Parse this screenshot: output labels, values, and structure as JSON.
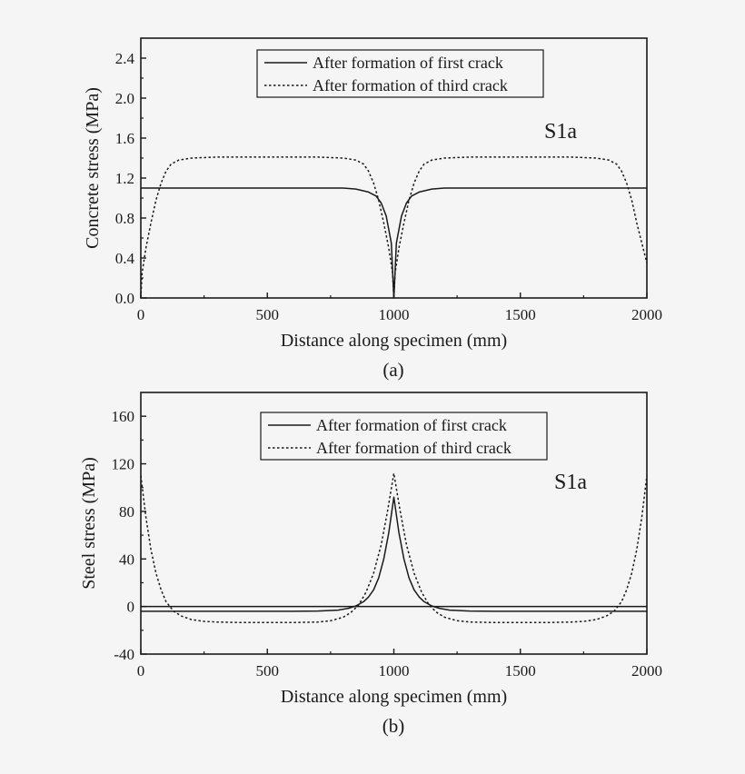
{
  "chart_data": [
    {
      "type": "line",
      "panel_label": "(a)",
      "title": "",
      "xlabel": "Distance along specimen (mm)",
      "ylabel": "Concrete stress (MPa)",
      "xlim": [
        0,
        2000
      ],
      "ylim": [
        0,
        2.6
      ],
      "xticks": [
        0,
        500,
        1000,
        1500,
        2000
      ],
      "xtick_labels": [
        "0",
        "500",
        "1000",
        "1500",
        "2000"
      ],
      "yticks": [
        0.0,
        0.4,
        0.8,
        1.2,
        1.6,
        2.0,
        2.4
      ],
      "ytick_labels": [
        "0.0",
        "0.4",
        "0.8",
        "1.2",
        "1.6",
        "2.0",
        "2.4"
      ],
      "annotation": "S1a",
      "legend_position": "top-center",
      "grid": false,
      "series": [
        {
          "name": "After formation of first crack",
          "style": "solid",
          "x": [
            0,
            200,
            400,
            600,
            700,
            800,
            850,
            900,
            930,
            950,
            970,
            990,
            1000,
            1010,
            1030,
            1050,
            1070,
            1100,
            1150,
            1200,
            1300,
            1400,
            1600,
            1800,
            2000
          ],
          "y": [
            1.1,
            1.1,
            1.1,
            1.1,
            1.1,
            1.1,
            1.09,
            1.06,
            1.02,
            0.95,
            0.82,
            0.55,
            0.0,
            0.55,
            0.82,
            0.95,
            1.02,
            1.06,
            1.09,
            1.1,
            1.1,
            1.1,
            1.1,
            1.1,
            1.1
          ]
        },
        {
          "name": "After formation of third crack",
          "style": "dotted",
          "x": [
            0,
            5,
            20,
            40,
            60,
            80,
            100,
            120,
            150,
            200,
            300,
            400,
            500,
            600,
            700,
            800,
            850,
            880,
            900,
            920,
            940,
            960,
            980,
            995,
            1000,
            1005,
            1020,
            1040,
            1060,
            1080,
            1100,
            1120,
            1150,
            1200,
            1300,
            1400,
            1500,
            1600,
            1700,
            1800,
            1850,
            1880,
            1900,
            1920,
            1940,
            1960,
            1980,
            2000
          ],
          "y": [
            0.0,
            0.25,
            0.5,
            0.75,
            0.98,
            1.15,
            1.27,
            1.34,
            1.38,
            1.4,
            1.41,
            1.41,
            1.41,
            1.41,
            1.41,
            1.4,
            1.38,
            1.34,
            1.27,
            1.15,
            0.98,
            0.75,
            0.5,
            0.25,
            0.0,
            0.25,
            0.5,
            0.75,
            0.98,
            1.15,
            1.27,
            1.34,
            1.38,
            1.4,
            1.41,
            1.41,
            1.41,
            1.41,
            1.41,
            1.4,
            1.38,
            1.34,
            1.27,
            1.15,
            0.98,
            0.75,
            0.55,
            0.35
          ]
        }
      ]
    },
    {
      "type": "line",
      "panel_label": "(b)",
      "title": "",
      "xlabel": "Distance along specimen (mm)",
      "ylabel": "Steel stress (MPa)",
      "xlim": [
        0,
        2000
      ],
      "ylim": [
        -40,
        180
      ],
      "xticks": [
        0,
        500,
        1000,
        1500,
        2000
      ],
      "xtick_labels": [
        "0",
        "500",
        "1000",
        "1500",
        "2000"
      ],
      "yticks": [
        -40,
        0,
        40,
        80,
        120,
        160
      ],
      "ytick_labels": [
        "-40",
        "0",
        "40",
        "80",
        "120",
        "160"
      ],
      "annotation": "S1a",
      "legend_position": "top-center",
      "grid": false,
      "reference_line_y": 0,
      "series": [
        {
          "name": "After formation of first crack",
          "style": "solid",
          "x": [
            0,
            200,
            400,
            600,
            700,
            780,
            820,
            850,
            880,
            900,
            920,
            940,
            960,
            980,
            1000,
            1020,
            1040,
            1060,
            1080,
            1100,
            1120,
            1150,
            1180,
            1220,
            1300,
            1400,
            1600,
            1800,
            2000
          ],
          "y": [
            -4,
            -4,
            -4,
            -4,
            -3.8,
            -3,
            -1.5,
            0.5,
            4,
            8,
            14,
            24,
            40,
            62,
            92,
            62,
            40,
            24,
            14,
            8,
            4,
            0.5,
            -1.5,
            -3,
            -3.8,
            -4,
            -4,
            -4,
            -4
          ]
        },
        {
          "name": "After formation of third crack",
          "style": "dotted",
          "x": [
            0,
            20,
            40,
            60,
            80,
            100,
            130,
            160,
            200,
            250,
            300,
            400,
            500,
            600,
            700,
            750,
            800,
            830,
            860,
            890,
            920,
            950,
            975,
            1000,
            1025,
            1050,
            1080,
            1110,
            1140,
            1170,
            1200,
            1250,
            1300,
            1400,
            1500,
            1600,
            1700,
            1750,
            1800,
            1840,
            1870,
            1900,
            1920,
            1940,
            1960,
            1980,
            2000
          ],
          "y": [
            110,
            75,
            48,
            28,
            14,
            4,
            -4,
            -8,
            -11,
            -12.5,
            -13,
            -13.5,
            -13.5,
            -13.5,
            -13,
            -12,
            -9,
            -5,
            1,
            12,
            28,
            52,
            80,
            112,
            80,
            52,
            28,
            12,
            1,
            -5,
            -9,
            -12,
            -13,
            -13.5,
            -13.5,
            -13.5,
            -13,
            -12.5,
            -11,
            -8,
            -4,
            4,
            14,
            28,
            48,
            75,
            110
          ]
        }
      ]
    }
  ]
}
